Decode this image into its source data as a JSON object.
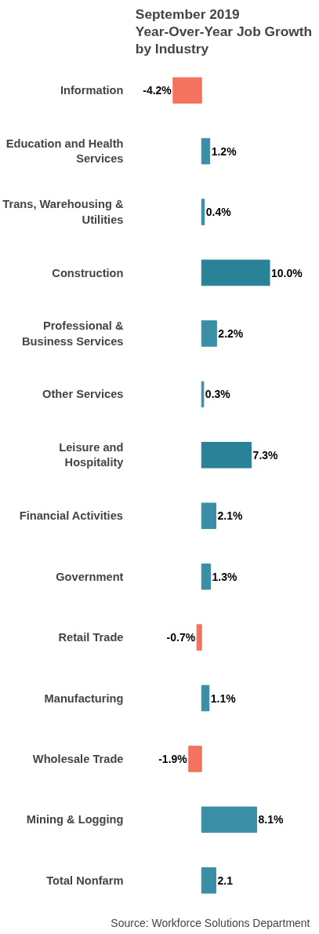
{
  "chart_data": {
    "type": "bar",
    "orientation": "horizontal",
    "title": "September 2019 Year-Over-Year Job Growth by Industry",
    "categories": [
      "Information",
      "Education and Health Services",
      "Trans, Warehousing & Utilities",
      "Construction",
      "Professional & Business Services",
      "Other Services",
      "Leisure and Hospitality",
      "Financial Activities",
      "Government",
      "Retail Trade",
      "Manufacturing",
      "Wholesale Trade",
      "Mining & Logging",
      "Total Nonfarm"
    ],
    "values": [
      -4.2,
      1.2,
      0.4,
      10.0,
      2.2,
      0.3,
      7.3,
      2.1,
      1.3,
      -0.7,
      1.1,
      -1.9,
      8.1,
      2.1
    ],
    "colors": [
      "#f4735e",
      "#3a8fa6",
      "#3a8fa6",
      "#2a8298",
      "#3a8fa6",
      "#3a8fa6",
      "#2a8298",
      "#3a8fa6",
      "#3a8fa6",
      "#f4735e",
      "#3a8fa6",
      "#f4735e",
      "#3a8fa6",
      "#3a8fa6"
    ],
    "value_labels": [
      "-4.2%",
      "1.2%",
      "0.4%",
      "10.0%",
      "2.2%",
      "0.3%",
      "7.3%",
      "2.1%",
      "1.3%",
      "-0.7%",
      "1.1%",
      "-1.9%",
      "8.1%",
      "2.1"
    ],
    "annotations": [
      "Source: Workforce Solutions Department"
    ]
  }
}
